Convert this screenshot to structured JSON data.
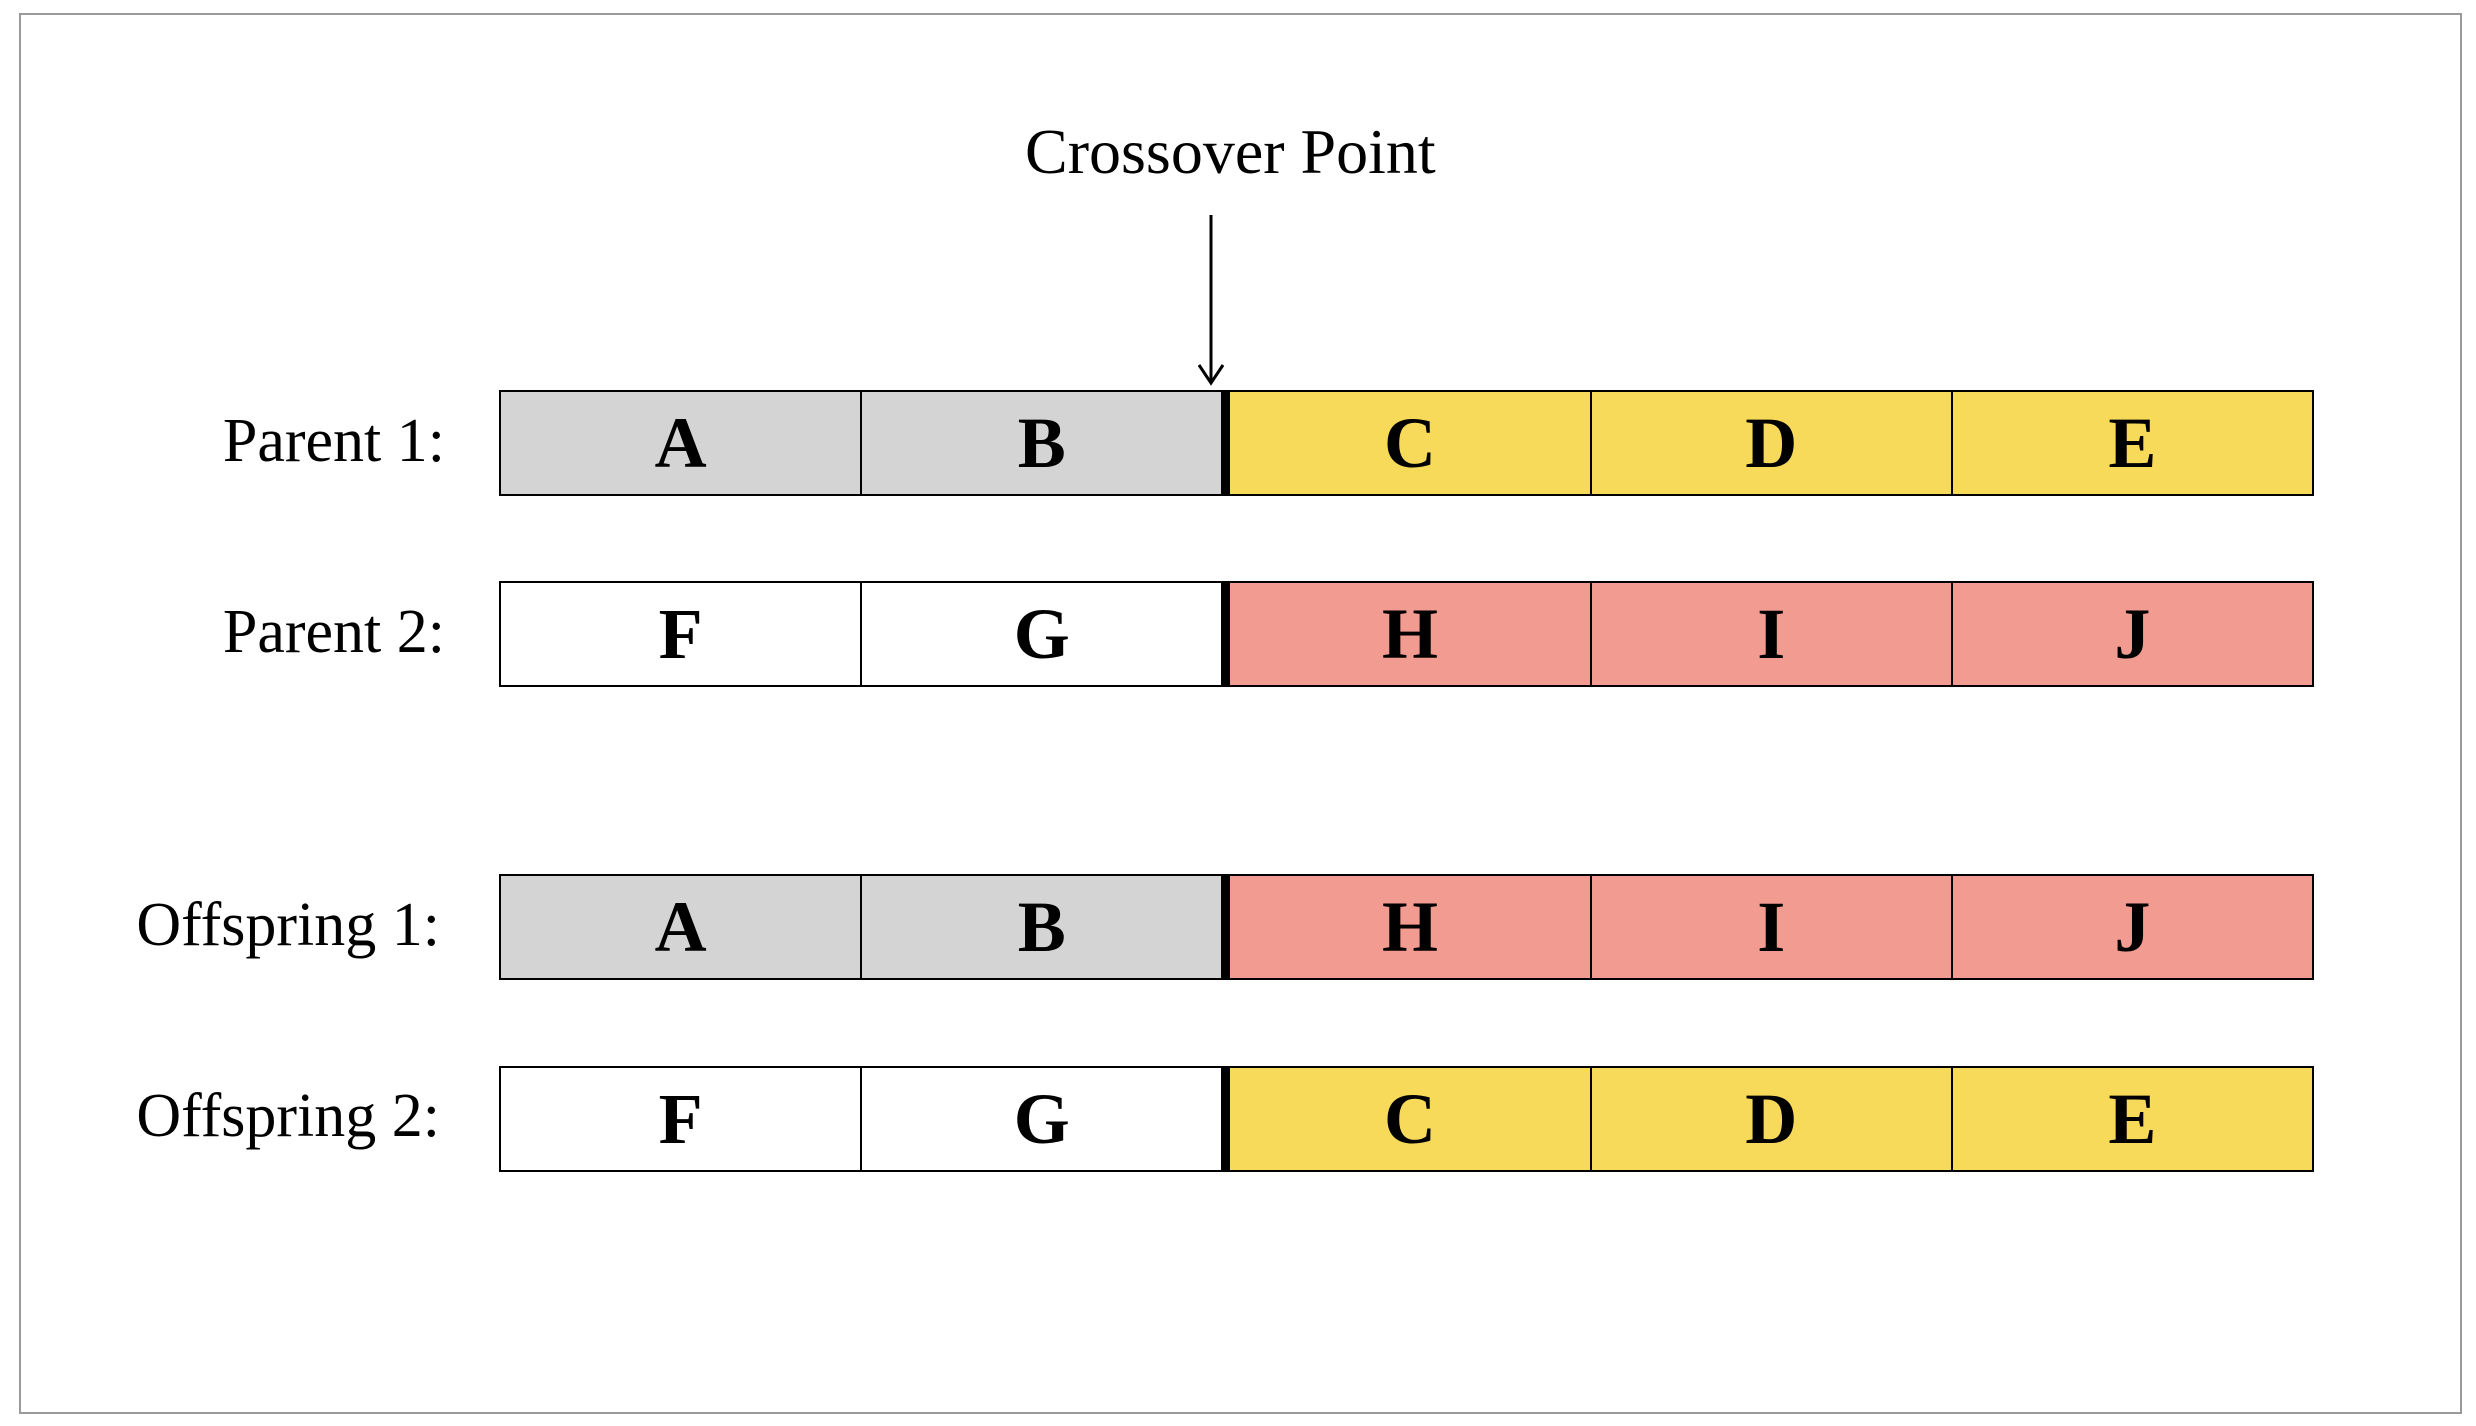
{
  "crossover": {
    "title": "Crossover Point"
  },
  "colors": {
    "gray": "#d4d4d4",
    "white": "#ffffff",
    "yellow": "#f7da59",
    "red": "#f29b90"
  },
  "rows": [
    {
      "label": "Parent 1:",
      "genes": [
        {
          "letter": "A",
          "color": "gray"
        },
        {
          "letter": "B",
          "color": "gray"
        },
        {
          "letter": "C",
          "color": "yellow"
        },
        {
          "letter": "D",
          "color": "yellow"
        },
        {
          "letter": "E",
          "color": "yellow"
        }
      ]
    },
    {
      "label": "Parent 2:",
      "genes": [
        {
          "letter": "F",
          "color": "white"
        },
        {
          "letter": "G",
          "color": "white"
        },
        {
          "letter": "H",
          "color": "red"
        },
        {
          "letter": "I",
          "color": "red"
        },
        {
          "letter": "J",
          "color": "red"
        }
      ]
    },
    {
      "label": "Offspring 1:",
      "genes": [
        {
          "letter": "A",
          "color": "gray"
        },
        {
          "letter": "B",
          "color": "gray"
        },
        {
          "letter": "H",
          "color": "red"
        },
        {
          "letter": "I",
          "color": "red"
        },
        {
          "letter": "J",
          "color": "red"
        }
      ]
    },
    {
      "label": "Offspring 2:",
      "genes": [
        {
          "letter": "F",
          "color": "white"
        },
        {
          "letter": "G",
          "color": "white"
        },
        {
          "letter": "C",
          "color": "yellow"
        },
        {
          "letter": "D",
          "color": "yellow"
        },
        {
          "letter": "E",
          "color": "yellow"
        }
      ]
    }
  ]
}
